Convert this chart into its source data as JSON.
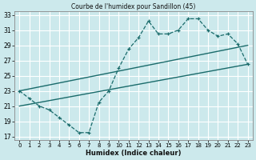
{
  "title": "Courbe de l'humidex pour Sandillon (45)",
  "xlabel": "Humidex (Indice chaleur)",
  "xlim": [
    -0.5,
    23.5
  ],
  "ylim": [
    16.5,
    33.5
  ],
  "xticks": [
    0,
    1,
    2,
    3,
    4,
    5,
    6,
    7,
    8,
    9,
    10,
    11,
    12,
    13,
    14,
    15,
    16,
    17,
    18,
    19,
    20,
    21,
    22,
    23
  ],
  "yticks": [
    17,
    19,
    21,
    23,
    25,
    27,
    29,
    31,
    33
  ],
  "bg_color": "#cce9ec",
  "grid_color": "#ffffff",
  "line_color": "#1a6b6b",
  "line1_x": [
    0,
    1,
    2,
    3,
    4,
    5,
    6,
    7,
    8,
    9,
    10,
    11,
    12,
    13,
    14,
    15,
    16,
    17,
    18,
    19,
    20,
    21,
    22,
    23
  ],
  "line1_y": [
    23,
    22,
    21,
    20.5,
    19.5,
    18.5,
    17.5,
    17.5,
    21.5,
    23,
    26,
    28.5,
    30,
    32.2,
    30.5,
    30.5,
    31,
    32.5,
    32.5,
    31,
    30.2,
    30.5,
    29.2,
    26.5
  ],
  "line2_x": [
    0,
    23
  ],
  "line2_y": [
    21.0,
    26.5
  ],
  "line3_x": [
    0,
    23
  ],
  "line3_y": [
    23.0,
    29.0
  ]
}
